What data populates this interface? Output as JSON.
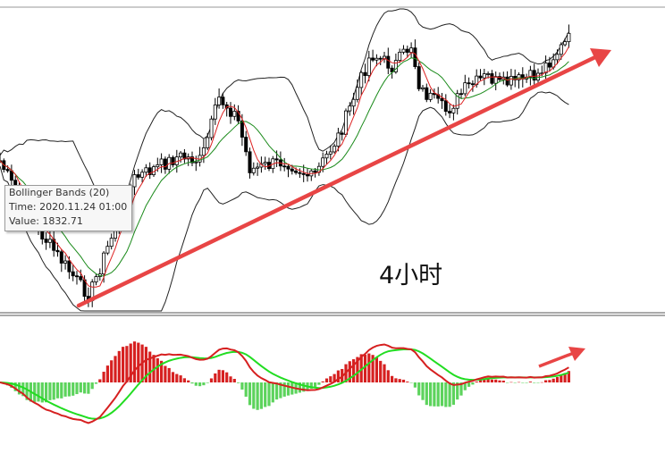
{
  "tooltip": {
    "title": "Bollinger Bands (20)",
    "time": "Time: 2020.11.24 01:00",
    "value": "Value: 1832.71"
  },
  "annotation": "4小时"
}
